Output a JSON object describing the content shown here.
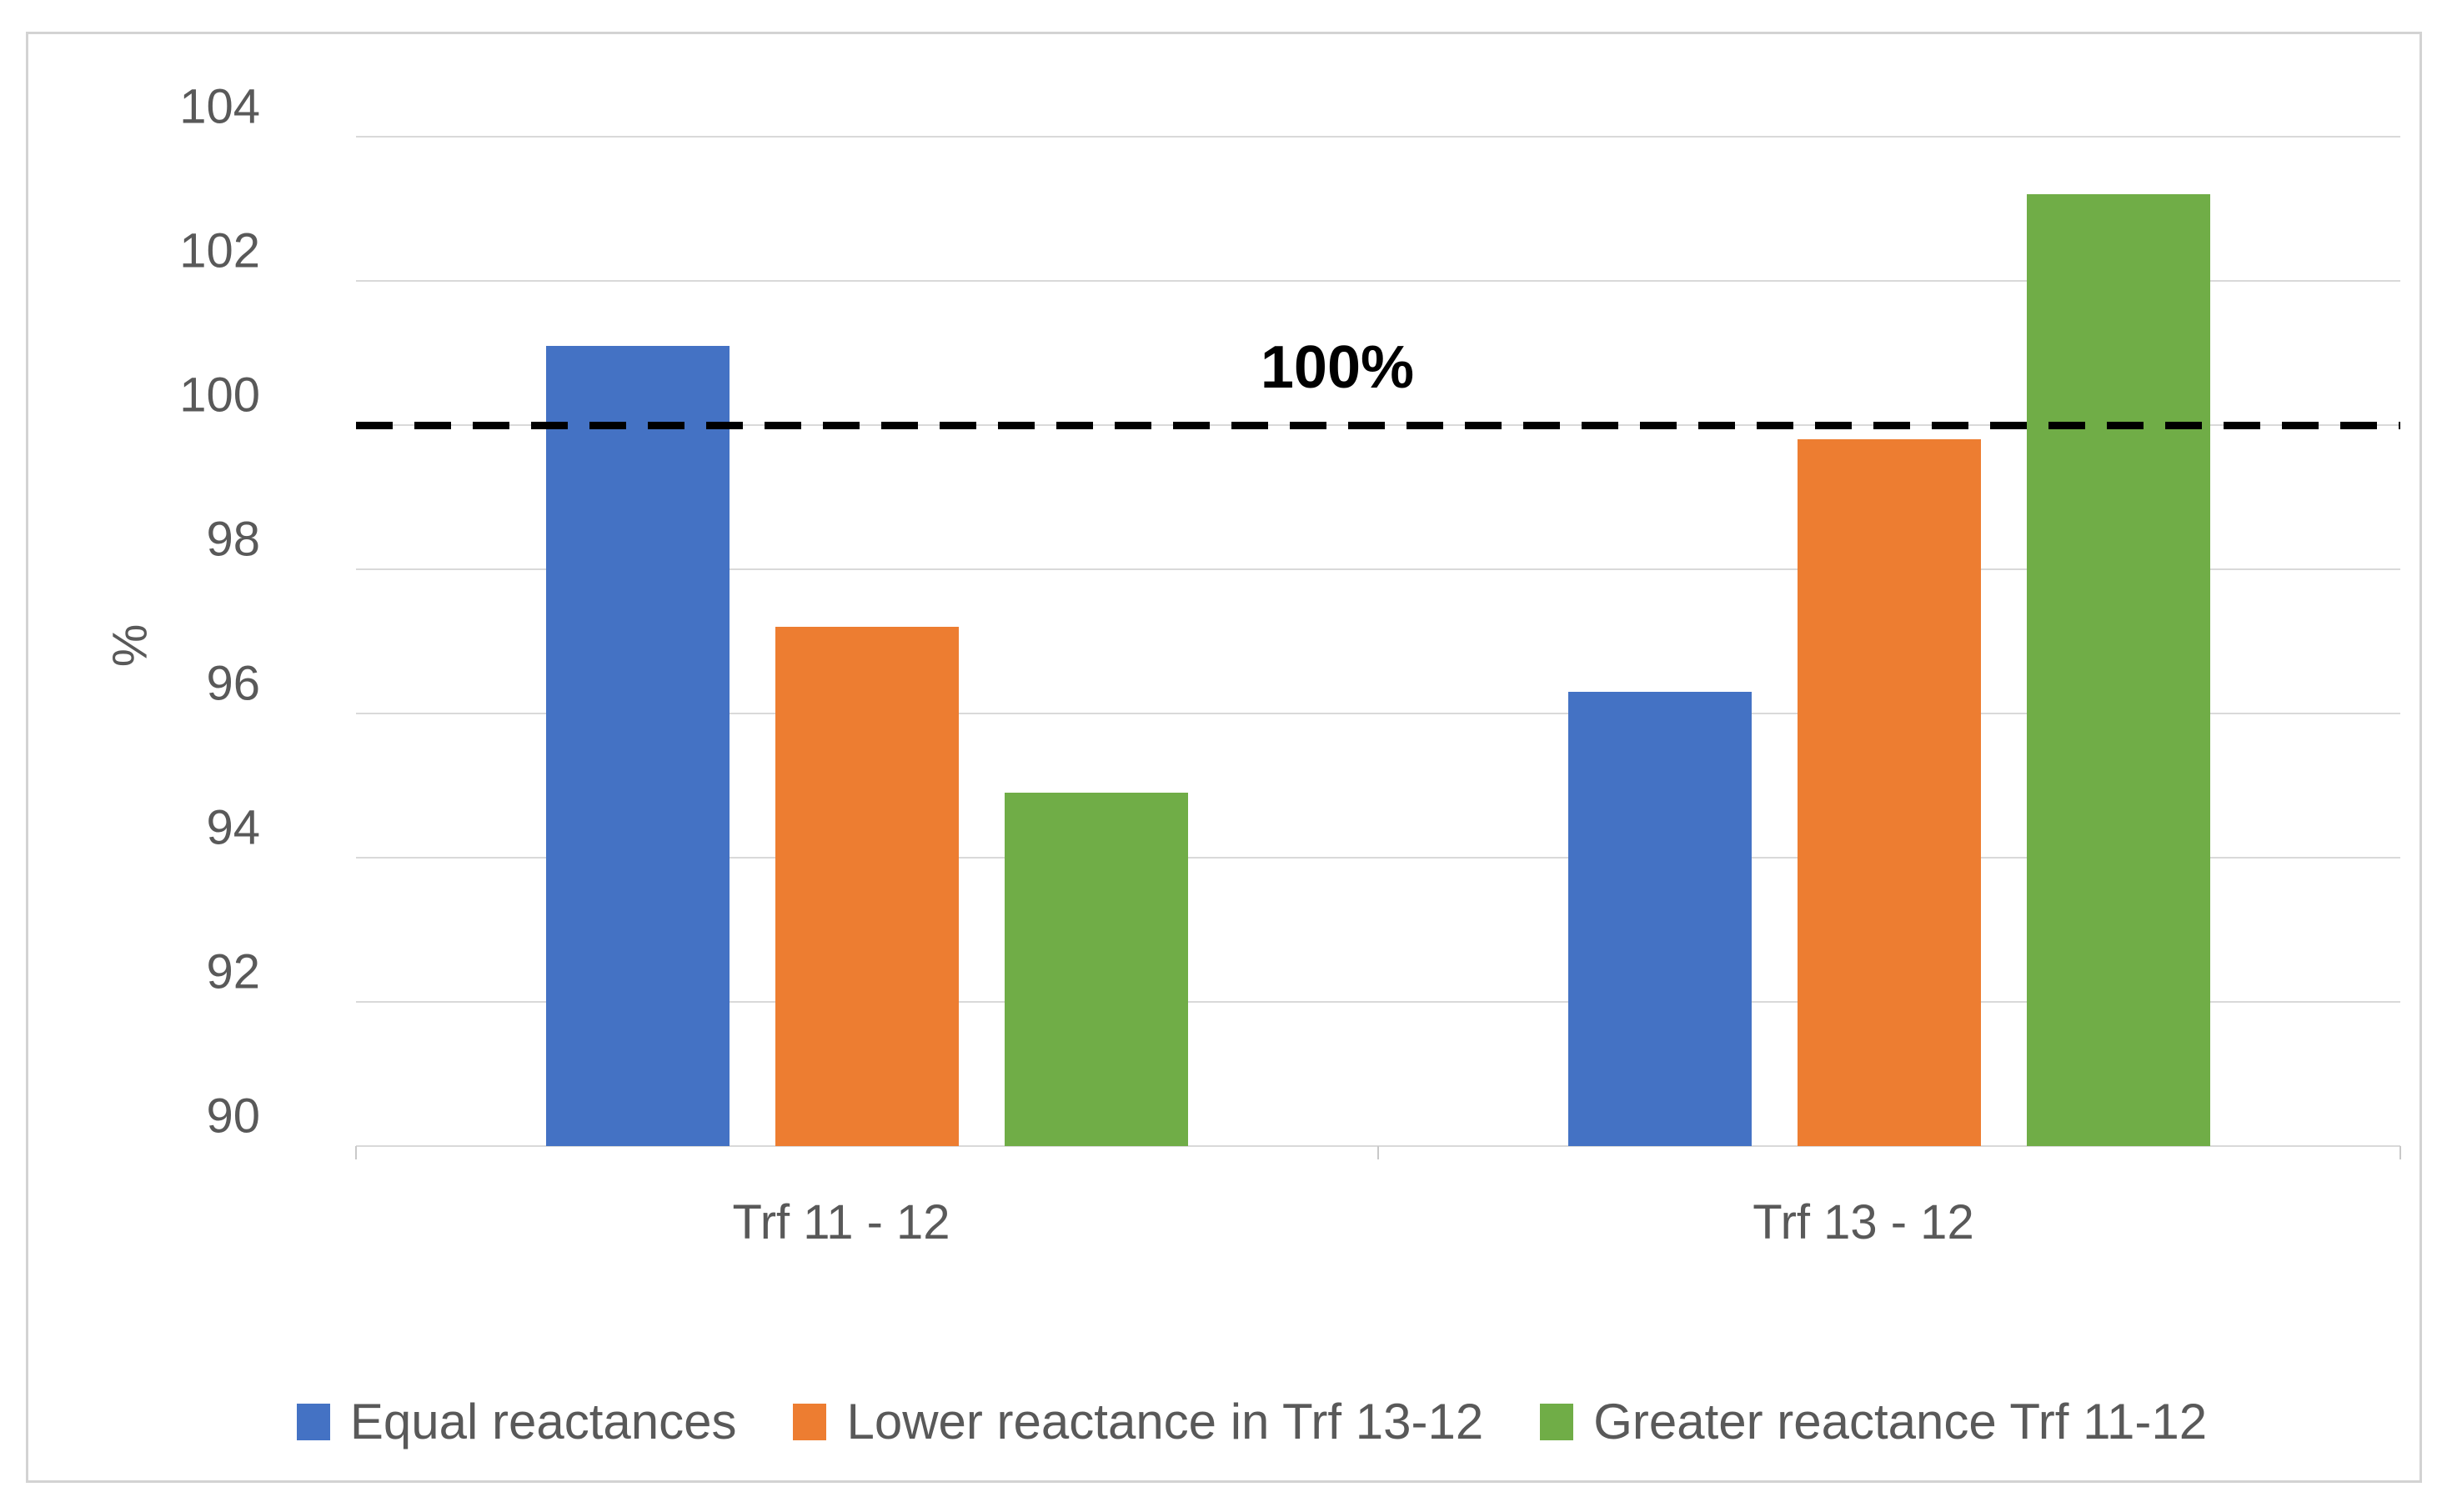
{
  "chart_data": {
    "type": "bar",
    "categories": [
      "Trf 11 - 12",
      "Trf 13 - 12"
    ],
    "series": [
      {
        "name": "Equal reactances",
        "color": "#4472C4",
        "values": [
          101.1,
          96.3
        ]
      },
      {
        "name": "Lower reactance in Trf 13-12",
        "color": "#ED7D31",
        "values": [
          97.2,
          99.8
        ]
      },
      {
        "name": "Greater reactance Trf 11-12",
        "color": "#70AD47",
        "values": [
          94.9,
          103.2
        ]
      }
    ],
    "title": "",
    "xlabel": "",
    "ylabel": "%",
    "ylim": [
      90,
      104
    ],
    "yticks": [
      90,
      92,
      94,
      96,
      98,
      100,
      102,
      104
    ],
    "grid": true,
    "gridline_color": "#d9d9d9",
    "tick_label_color": "#595959",
    "legend_position": "bottom",
    "reference_line": {
      "value": 100,
      "label": "100%",
      "style": "dashed",
      "color": "#000000"
    }
  }
}
